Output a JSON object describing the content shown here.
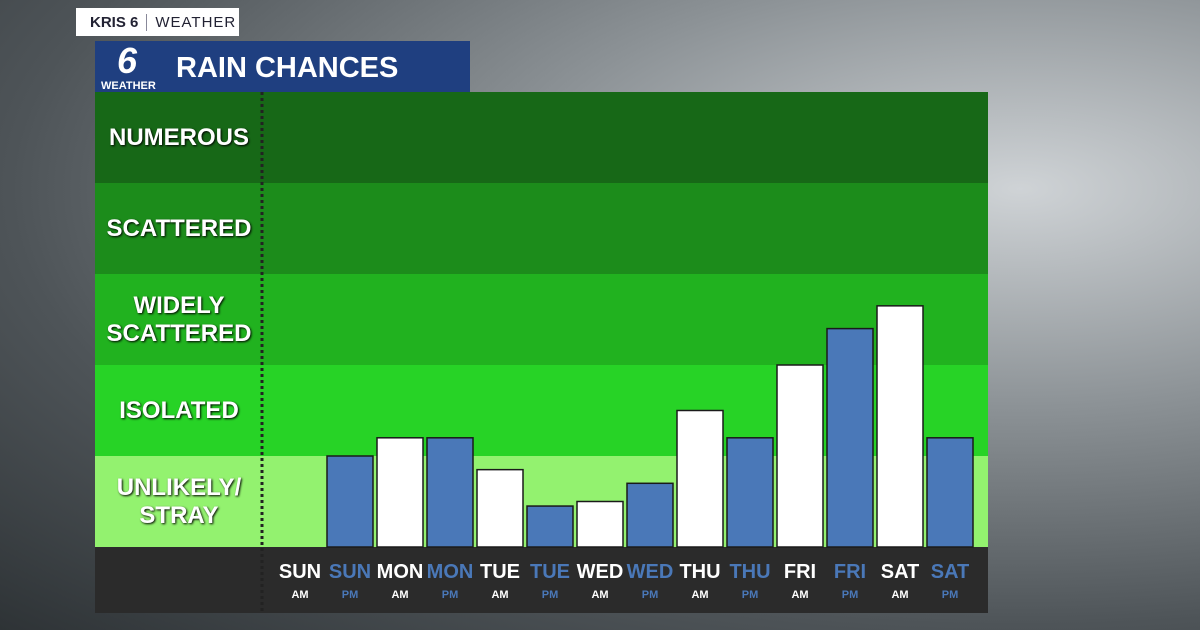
{
  "header": {
    "tag_brand": "KRIS 6",
    "tag_section": "WEATHER",
    "logo_number": "6",
    "logo_word": "WEATHER"
  },
  "chart_data": {
    "type": "bar",
    "title": "RAIN CHANCES",
    "categories": [
      "SUN",
      "SUN",
      "MON",
      "MON",
      "TUE",
      "TUE",
      "WED",
      "WED",
      "THU",
      "THU",
      "FRI",
      "FRI",
      "SAT",
      "SAT"
    ],
    "periods": [
      "AM",
      "PM",
      "AM",
      "PM",
      "AM",
      "PM",
      "AM",
      "PM",
      "AM",
      "PM",
      "AM",
      "PM",
      "AM",
      "PM"
    ],
    "values": [
      0,
      1.0,
      1.2,
      1.2,
      0.85,
      0.45,
      0.5,
      0.7,
      1.5,
      1.2,
      2.0,
      2.4,
      2.65,
      1.2
    ],
    "colors": [
      "#ffffff",
      "#4a78b8",
      "#ffffff",
      "#4a78b8",
      "#ffffff",
      "#4a78b8",
      "#ffffff",
      "#4a78b8",
      "#ffffff",
      "#4a78b8",
      "#ffffff",
      "#4a78b8",
      "#ffffff",
      "#4a78b8"
    ],
    "ylim": [
      0,
      5
    ],
    "yticks": [
      {
        "value": 0.5,
        "label": "UNLIKELY/ STRAY"
      },
      {
        "value": 1.5,
        "label": "ISOLATED"
      },
      {
        "value": 2.5,
        "label": "WIDELY SCATTERED"
      },
      {
        "value": 3.5,
        "label": "SCATTERED"
      },
      {
        "value": 4.5,
        "label": "NUMEROUS"
      }
    ],
    "band_colors": [
      "#93f26f",
      "#27d326",
      "#21b21f",
      "#1c8c1b",
      "#176817"
    ]
  }
}
